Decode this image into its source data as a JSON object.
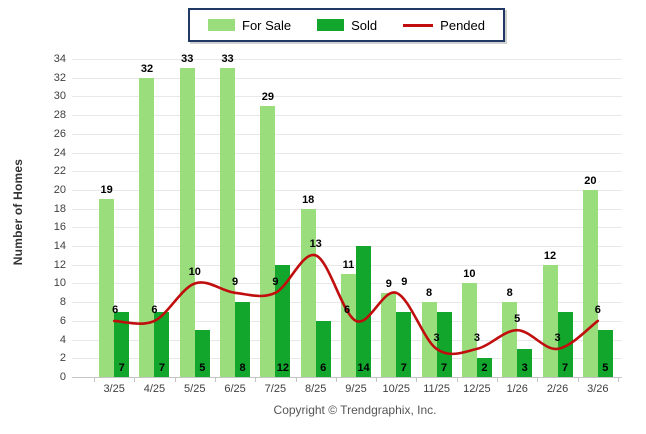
{
  "legend": {
    "items": [
      {
        "label": "For Sale",
        "color": "#9ADD7D",
        "marker": "swatch"
      },
      {
        "label": "Sold",
        "color": "#12A62C",
        "marker": "swatch"
      },
      {
        "label": "Pended",
        "color": "#C00D0D",
        "marker": "line"
      }
    ]
  },
  "ylabel": "Number of Homes",
  "footer": {
    "copyright": "Copyright © Trendgraphix, Inc."
  },
  "chart_data": {
    "type": "bar",
    "subtype": "grouped bars with overlaid smooth line",
    "categories": [
      "3/25",
      "4/25",
      "5/25",
      "6/25",
      "7/25",
      "8/25",
      "9/25",
      "10/25",
      "11/25",
      "12/25",
      "1/26",
      "2/26",
      "3/26"
    ],
    "series": [
      {
        "name": "For Sale",
        "type": "bar",
        "color": "#9ADD7D",
        "values": [
          19,
          32,
          33,
          33,
          29,
          18,
          11,
          9,
          8,
          10,
          8,
          12,
          20
        ]
      },
      {
        "name": "Sold",
        "type": "bar",
        "color": "#12A62C",
        "values": [
          7,
          7,
          5,
          8,
          12,
          6,
          14,
          7,
          7,
          2,
          3,
          7,
          5
        ]
      },
      {
        "name": "Pended",
        "type": "line",
        "color": "#C00D0D",
        "values": [
          6,
          6,
          10,
          9,
          9,
          13,
          6,
          9,
          3,
          3,
          5,
          3,
          6
        ]
      }
    ],
    "title": "",
    "xlabel": "",
    "ylabel": "Number of Homes",
    "ylim": [
      0,
      34
    ],
    "ytick_step": 2,
    "grid": true,
    "legend_position": "top-center",
    "value_labels": "all points labeled",
    "gridline_color": "#E8E8E8",
    "background_color": "#FFFFFF"
  }
}
